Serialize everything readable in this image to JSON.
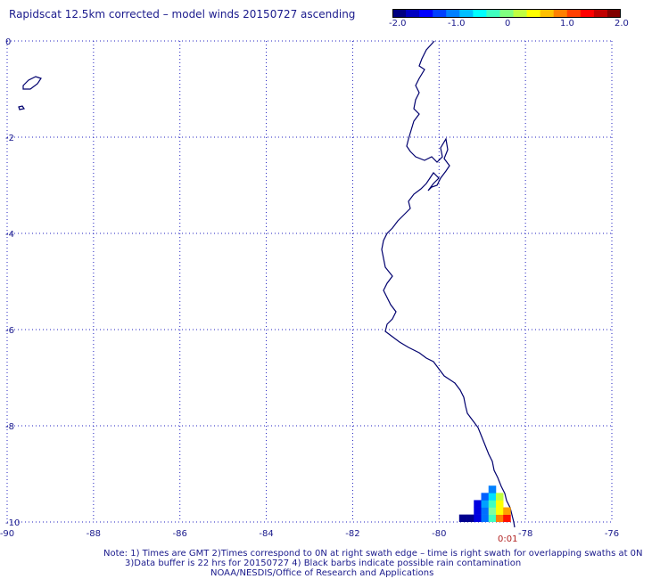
{
  "title": "Rapidscat 12.5km corrected – model winds 20150727 ascending",
  "colorbar": {
    "labels": [
      "-2.0",
      "-1.0",
      "0",
      "1.0",
      "2.0"
    ],
    "colors": [
      "#000080",
      "#0000c0",
      "#0000ff",
      "#0040ff",
      "#0080ff",
      "#00c0ff",
      "#00ffff",
      "#40ffc0",
      "#80ff80",
      "#c0ff40",
      "#ffff00",
      "#ffc000",
      "#ff8000",
      "#ff4000",
      "#ff0000",
      "#c00000",
      "#800000"
    ]
  },
  "map": {
    "lon_ticks": [
      "-90",
      "-88",
      "-86",
      "-84",
      "-82",
      "-80",
      "-78",
      "-76"
    ],
    "lat_ticks": [
      "0",
      "-2",
      "-4",
      "-6",
      "-8",
      "-10"
    ],
    "lon_range": [
      -90,
      -76
    ],
    "lat_range": [
      -10,
      0
    ],
    "coast_color": "#00006e",
    "grid_color": "#2020c0",
    "swath_cells": [
      {
        "lon": -79.45,
        "lat": -9.92,
        "color": "#00008f"
      },
      {
        "lon": -79.28,
        "lat": -9.92,
        "color": "#00008f"
      },
      {
        "lon": -79.11,
        "lat": -9.92,
        "color": "#0000e0"
      },
      {
        "lon": -78.94,
        "lat": -9.92,
        "color": "#0070ff"
      },
      {
        "lon": -78.77,
        "lat": -9.92,
        "color": "#40ffc0"
      },
      {
        "lon": -78.6,
        "lat": -9.92,
        "color": "#ff8000"
      },
      {
        "lon": -78.43,
        "lat": -9.92,
        "color": "#ff1000"
      },
      {
        "lon": -79.11,
        "lat": -9.77,
        "color": "#0000e0"
      },
      {
        "lon": -78.94,
        "lat": -9.77,
        "color": "#0070ff"
      },
      {
        "lon": -78.77,
        "lat": -9.77,
        "color": "#80ffa0"
      },
      {
        "lon": -78.6,
        "lat": -9.77,
        "color": "#ffff00"
      },
      {
        "lon": -78.43,
        "lat": -9.77,
        "color": "#ffa000"
      },
      {
        "lon": -79.11,
        "lat": -9.62,
        "color": "#0000e0"
      },
      {
        "lon": -78.94,
        "lat": -9.62,
        "color": "#00a0ff"
      },
      {
        "lon": -78.77,
        "lat": -9.62,
        "color": "#40ffc0"
      },
      {
        "lon": -78.6,
        "lat": -9.62,
        "color": "#ffff00"
      },
      {
        "lon": -78.94,
        "lat": -9.47,
        "color": "#0060ff"
      },
      {
        "lon": -78.77,
        "lat": -9.47,
        "color": "#00e0ff"
      },
      {
        "lon": -78.6,
        "lat": -9.47,
        "color": "#c0ff40"
      },
      {
        "lon": -78.77,
        "lat": -9.32,
        "color": "#0080ff"
      }
    ],
    "time_label": "0:01"
  },
  "notes": [
    "Note: 1) Times are GMT 2)Times correspond to 0N at right swath edge – time is right swath for overlapping swaths at 0N",
    "3)Data buffer is 22 hrs for 20150727 4) Black barbs indicate possible rain contamination",
    "NOAA/NESDIS/Office of Research and Applications"
  ]
}
